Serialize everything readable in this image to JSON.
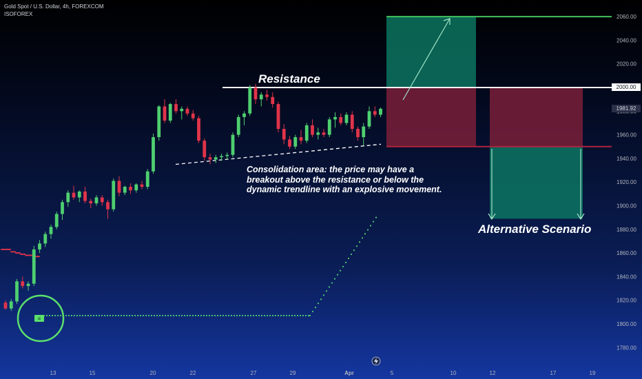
{
  "header": {
    "symbol_line": "Gold Spot / U.S. Dollar, 4h, FOREXCOM",
    "author": "ISOFOREX"
  },
  "price_tags": {
    "resistance": "2000.00",
    "current": "1981.92"
  },
  "annotations": {
    "resistance_label": "Resistance",
    "consolidation_note": "Consolidation area: the price may have a breakout above the resistance or below the dynamic trendline with an explosive movement.",
    "alternative_label": "Alternative Scenario",
    "marker_label": "≡"
  },
  "chart_data": {
    "type": "candlestick",
    "title": "Gold Spot / U.S. Dollar, 4h, FOREXCOM",
    "ylim": [
      1768,
      2066
    ],
    "y_ticks": [
      2060,
      2040,
      2020,
      2000,
      1980,
      1960,
      1940,
      1920,
      1900,
      1880,
      1860,
      1840,
      1820,
      1800,
      1780
    ],
    "y_tick_labels": [
      "2060.00",
      "2040.00",
      "2020.00",
      "2000.00",
      "1980.00",
      "1960.00",
      "1940.00",
      "1920.00",
      "1900.00",
      "1880.00",
      "1860.00",
      "1840.00",
      "1820.00",
      "1800.00",
      "1780.00"
    ],
    "x_tick_labels": [
      "13",
      "15",
      "20",
      "22",
      "27",
      "29",
      "Apr",
      "5",
      "10",
      "12",
      "17",
      "19"
    ],
    "levels": {
      "resistance": 2000,
      "target": 2060,
      "stop": 1950,
      "current": 1981.92
    },
    "trendline": {
      "from": 1935,
      "to": 1952
    },
    "candles": [
      [
        1818,
        1820,
        1812,
        1813
      ],
      [
        1813,
        1821,
        1811,
        1819
      ],
      [
        1819,
        1838,
        1817,
        1836
      ],
      [
        1836,
        1840,
        1830,
        1832
      ],
      [
        1832,
        1836,
        1828,
        1834
      ],
      [
        1834,
        1866,
        1832,
        1863
      ],
      [
        1863,
        1871,
        1860,
        1868
      ],
      [
        1868,
        1878,
        1865,
        1876
      ],
      [
        1876,
        1884,
        1872,
        1882
      ],
      [
        1882,
        1895,
        1880,
        1893
      ],
      [
        1893,
        1905,
        1888,
        1903
      ],
      [
        1903,
        1913,
        1899,
        1911
      ],
      [
        1911,
        1917,
        1905,
        1907
      ],
      [
        1907,
        1913,
        1903,
        1912
      ],
      [
        1912,
        1916,
        1902,
        1904
      ],
      [
        1904,
        1906,
        1898,
        1902
      ],
      [
        1902,
        1909,
        1900,
        1907
      ],
      [
        1907,
        1909,
        1900,
        1903
      ],
      [
        1903,
        1905,
        1889,
        1897
      ],
      [
        1897,
        1923,
        1895,
        1921
      ],
      [
        1921,
        1925,
        1908,
        1911
      ],
      [
        1911,
        1917,
        1909,
        1916
      ],
      [
        1916,
        1919,
        1910,
        1913
      ],
      [
        1913,
        1919,
        1911,
        1918
      ],
      [
        1918,
        1921,
        1914,
        1916
      ],
      [
        1916,
        1931,
        1914,
        1929
      ],
      [
        1929,
        1961,
        1927,
        1958
      ],
      [
        1958,
        1985,
        1955,
        1984
      ],
      [
        1984,
        1990,
        1970,
        1972
      ],
      [
        1972,
        1987,
        1970,
        1986
      ],
      [
        1986,
        1990,
        1978,
        1980
      ],
      [
        1980,
        1984,
        1973,
        1982
      ],
      [
        1982,
        1984,
        1976,
        1978
      ],
      [
        1978,
        1981,
        1972,
        1974
      ],
      [
        1974,
        1976,
        1953,
        1955
      ],
      [
        1955,
        1957,
        1938,
        1941
      ],
      [
        1941,
        1944,
        1935,
        1939
      ],
      [
        1939,
        1943,
        1936,
        1941
      ],
      [
        1941,
        1944,
        1938,
        1942
      ],
      [
        1942,
        1945,
        1939,
        1943
      ],
      [
        1943,
        1962,
        1941,
        1960
      ],
      [
        1960,
        1977,
        1958,
        1975
      ],
      [
        1975,
        1980,
        1968,
        1978
      ],
      [
        1978,
        2002,
        1976,
        2000
      ],
      [
        2000,
        2003,
        1986,
        1990
      ],
      [
        1990,
        1996,
        1984,
        1994
      ],
      [
        1994,
        1998,
        1989,
        1992
      ],
      [
        1992,
        1996,
        1983,
        1986
      ],
      [
        1986,
        1988,
        1962,
        1965
      ],
      [
        1965,
        1969,
        1952,
        1956
      ],
      [
        1956,
        1959,
        1948,
        1950
      ],
      [
        1950,
        1960,
        1948,
        1958
      ],
      [
        1958,
        1964,
        1952,
        1955
      ],
      [
        1955,
        1970,
        1953,
        1968
      ],
      [
        1968,
        1973,
        1958,
        1960
      ],
      [
        1960,
        1966,
        1956,
        1962
      ],
      [
        1962,
        1965,
        1958,
        1960
      ],
      [
        1960,
        1975,
        1958,
        1973
      ],
      [
        1973,
        1979,
        1966,
        1975
      ],
      [
        1975,
        1978,
        1968,
        1970
      ],
      [
        1970,
        1979,
        1968,
        1977
      ],
      [
        1977,
        1980,
        1962,
        1965
      ],
      [
        1965,
        1967,
        1955,
        1958
      ],
      [
        1958,
        1970,
        1951,
        1967
      ],
      [
        1967,
        1984,
        1965,
        1980
      ],
      [
        1980,
        1984,
        1975,
        1977
      ],
      [
        1977,
        1983,
        1975,
        1982
      ]
    ],
    "resistance_dots": [
      1863,
      1863,
      1861,
      1860,
      1859,
      1858,
      1858,
      1857
    ],
    "support_dots": [
      1807,
      1807,
      1807,
      1807,
      1815,
      1830,
      1845,
      1860,
      1875,
      1890
    ]
  },
  "colors": {
    "up": "#4fcf70",
    "down": "#e0344a",
    "target_zone": "#0c7a64",
    "risk_zone": "#7a1f38",
    "resistance_line": "#ffffff",
    "stop_line": "#b0223d",
    "target_line": "#43c25d",
    "support_dots": "#4fcf70",
    "resistance_dots": "#e0344a"
  }
}
